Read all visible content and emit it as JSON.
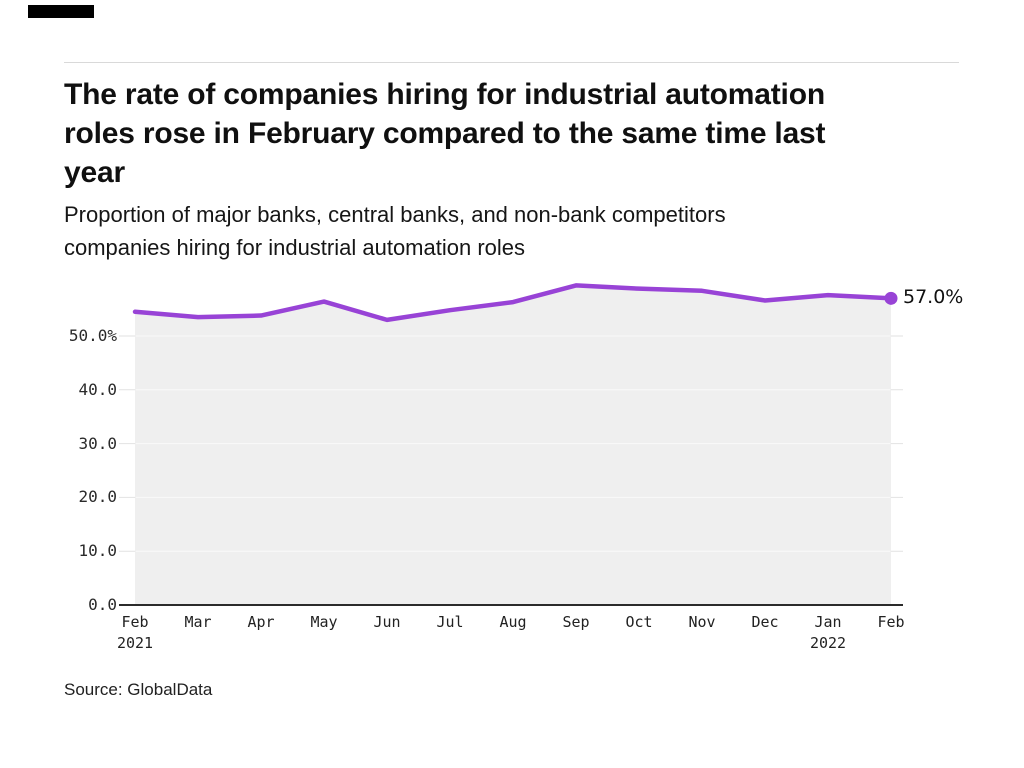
{
  "header": {
    "brand_bar_color": "#000000"
  },
  "chart_data": {
    "type": "area",
    "title": "The rate of companies hiring for industrial automation\nroles rose in February compared to the same time last\nyear",
    "subtitle": "Proportion of major banks, central banks, and non-bank competitors\ncompanies hiring for industrial automation roles",
    "x_labels": [
      {
        "month": "Feb",
        "year": "2021"
      },
      {
        "month": "Mar"
      },
      {
        "month": "Apr"
      },
      {
        "month": "May"
      },
      {
        "month": "Jun"
      },
      {
        "month": "Jul"
      },
      {
        "month": "Aug"
      },
      {
        "month": "Sep"
      },
      {
        "month": "Oct"
      },
      {
        "month": "Nov"
      },
      {
        "month": "Dec"
      },
      {
        "month": "Jan",
        "year": "2022"
      },
      {
        "month": "Feb"
      }
    ],
    "values": [
      54.5,
      53.5,
      53.8,
      56.4,
      53.0,
      54.8,
      56.3,
      59.4,
      58.8,
      58.4,
      56.6,
      57.6,
      57.0
    ],
    "y_ticks": [
      {
        "value": 0,
        "label": "0.0"
      },
      {
        "value": 10,
        "label": "10.0"
      },
      {
        "value": 20,
        "label": "20.0"
      },
      {
        "value": 30,
        "label": "30.0"
      },
      {
        "value": 40,
        "label": "40.0"
      },
      {
        "value": 50,
        "label": "50.0%"
      }
    ],
    "ylim": [
      0,
      61
    ],
    "grid": true,
    "legend": "none",
    "end_label": "57.0%",
    "line_color": "#9843d6",
    "fill_color": "#efefef",
    "axis_color": "#2b2b2b",
    "gridline_color_outside": "#e2e2e2",
    "gridline_color_inside": "#fafafa"
  },
  "footer": {
    "source": "Source: GlobalData"
  }
}
